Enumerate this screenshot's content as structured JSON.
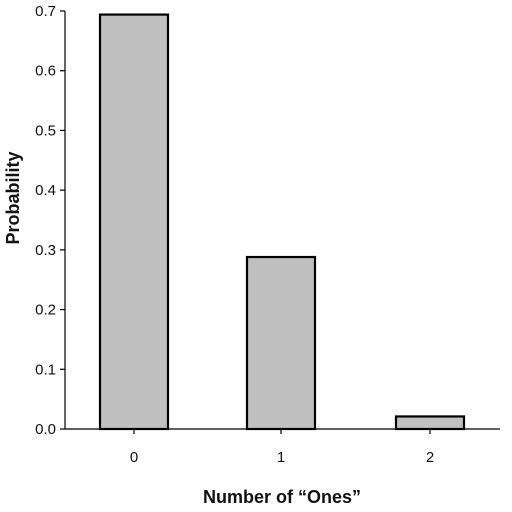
{
  "chart_data": {
    "type": "bar",
    "categories": [
      "0",
      "1",
      "2"
    ],
    "values": [
      0.694,
      0.288,
      0.021
    ],
    "xlabel": "Number of “Ones”",
    "ylabel": "Probability",
    "ylim": [
      0,
      0.7
    ],
    "yticks": [
      "0.0",
      "0.1",
      "0.2",
      "0.3",
      "0.4",
      "0.5",
      "0.6",
      "0.7"
    ],
    "grid": false,
    "colors": {
      "bar_fill": "#c0c0c0",
      "bar_stroke": "#000000",
      "axis": "#000000"
    }
  }
}
